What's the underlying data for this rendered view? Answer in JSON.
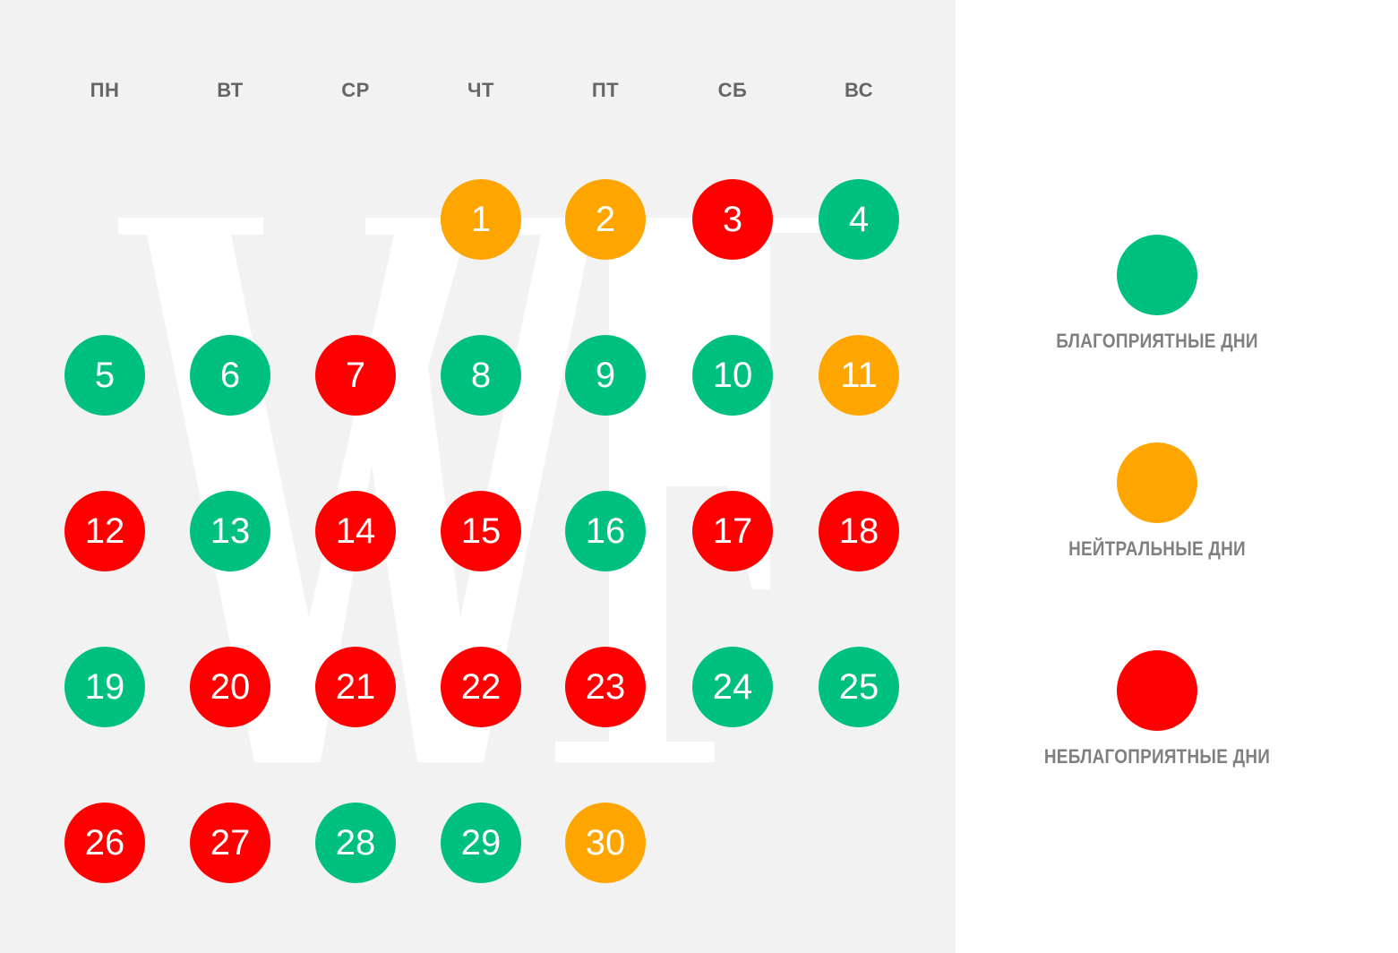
{
  "colors": {
    "favorable": "#00c080",
    "neutral": "#ffa500",
    "unfavorable": "#ff0000",
    "panel_bg": "#f2f2f2",
    "text_muted": "#808080"
  },
  "calendar": {
    "weekdays": [
      "ПН",
      "ВТ",
      "СР",
      "ЧТ",
      "ПТ",
      "СБ",
      "ВС"
    ],
    "first_weekday_index": 3,
    "days": [
      {
        "label": "1",
        "status": "neutral"
      },
      {
        "label": "2",
        "status": "neutral"
      },
      {
        "label": "3",
        "status": "unfavorable"
      },
      {
        "label": "4",
        "status": "favorable"
      },
      {
        "label": "5",
        "status": "favorable"
      },
      {
        "label": "6",
        "status": "favorable"
      },
      {
        "label": "7",
        "status": "unfavorable"
      },
      {
        "label": "8",
        "status": "favorable"
      },
      {
        "label": "9",
        "status": "favorable"
      },
      {
        "label": "10",
        "status": "favorable"
      },
      {
        "label": "11",
        "status": "neutral"
      },
      {
        "label": "12",
        "status": "unfavorable"
      },
      {
        "label": "13",
        "status": "favorable"
      },
      {
        "label": "14",
        "status": "unfavorable"
      },
      {
        "label": "15",
        "status": "unfavorable"
      },
      {
        "label": "16",
        "status": "favorable"
      },
      {
        "label": "17",
        "status": "unfavorable"
      },
      {
        "label": "18",
        "status": "unfavorable"
      },
      {
        "label": "19",
        "status": "favorable"
      },
      {
        "label": "20",
        "status": "unfavorable"
      },
      {
        "label": "21",
        "status": "unfavorable"
      },
      {
        "label": "22",
        "status": "unfavorable"
      },
      {
        "label": "23",
        "status": "unfavorable"
      },
      {
        "label": "24",
        "status": "favorable"
      },
      {
        "label": "25",
        "status": "favorable"
      },
      {
        "label": "26",
        "status": "unfavorable"
      },
      {
        "label": "27",
        "status": "unfavorable"
      },
      {
        "label": "28",
        "status": "favorable"
      },
      {
        "label": "29",
        "status": "favorable"
      },
      {
        "label": "30",
        "status": "neutral"
      }
    ]
  },
  "watermark": {
    "text": "WF"
  },
  "legend": {
    "favorable_label": "БЛАГОПРИЯТНЫЕ ДНИ",
    "neutral_label": "НЕЙТРАЛЬНЫЕ ДНИ",
    "unfavorable_label": "НЕБЛАГОПРИЯТНЫЕ ДНИ"
  }
}
